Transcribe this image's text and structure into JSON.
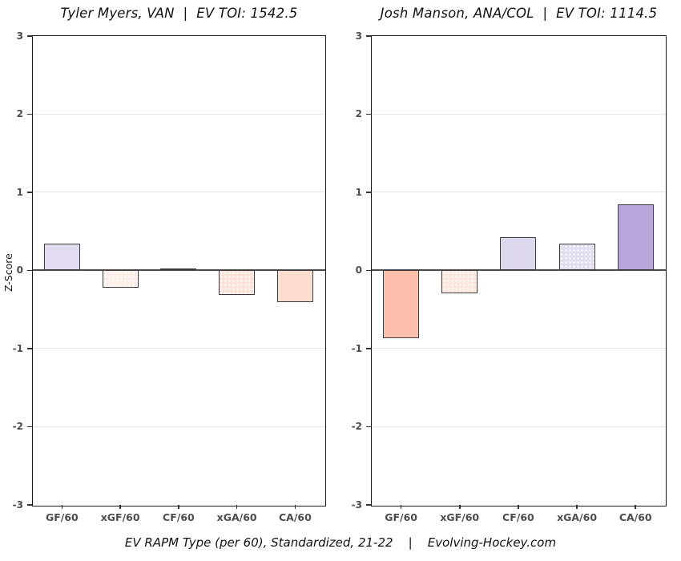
{
  "shared": {
    "ylabel": "Z-Score",
    "caption": "EV RAPM Type (per 60), Standardized, 21-22    |    Evolving-Hockey.com"
  },
  "chart_data": [
    {
      "type": "bar",
      "title": "Tyler Myers, VAN  |  EV TOI: 1542.5",
      "player": "Tyler Myers",
      "team": "VAN",
      "ev_toi": "1542.5",
      "categories": [
        "GF/60",
        "xGF/60",
        "CF/60",
        "xGA/60",
        "CA/60"
      ],
      "values": [
        0.34,
        -0.22,
        0.02,
        -0.31,
        -0.41
      ],
      "bar_colors": [
        "#E3DBF0",
        "#FCEDE8",
        "#EFEDF2",
        "#FBE3DA",
        "#FCDCCE"
      ],
      "textured": [
        false,
        true,
        false,
        true,
        false
      ],
      "ylabel": "Z-Score",
      "xlabel": "",
      "ylim": [
        -3,
        3
      ],
      "yticks": [
        3,
        2,
        1,
        0,
        -1,
        -2,
        -3
      ],
      "grid": true,
      "legend": "none"
    },
    {
      "type": "bar",
      "title": "Josh Manson, ANA/COL  |  EV TOI: 1114.5",
      "player": "Josh Manson",
      "team": "ANA/COL",
      "ev_toi": "1114.5",
      "categories": [
        "GF/60",
        "xGF/60",
        "CF/60",
        "xGA/60",
        "CA/60"
      ],
      "values": [
        -0.87,
        -0.29,
        0.42,
        0.34,
        0.85
      ],
      "bar_colors": [
        "#FBBFAB",
        "#FCE7DE",
        "#DFD7EE",
        "#E3DBF0",
        "#B9A6DB"
      ],
      "textured": [
        false,
        true,
        false,
        true,
        false
      ],
      "ylabel": "Z-Score",
      "xlabel": "",
      "ylim": [
        -3,
        3
      ],
      "yticks": [
        3,
        2,
        1,
        0,
        -1,
        -2,
        -3
      ],
      "grid": true,
      "legend": "none"
    }
  ]
}
